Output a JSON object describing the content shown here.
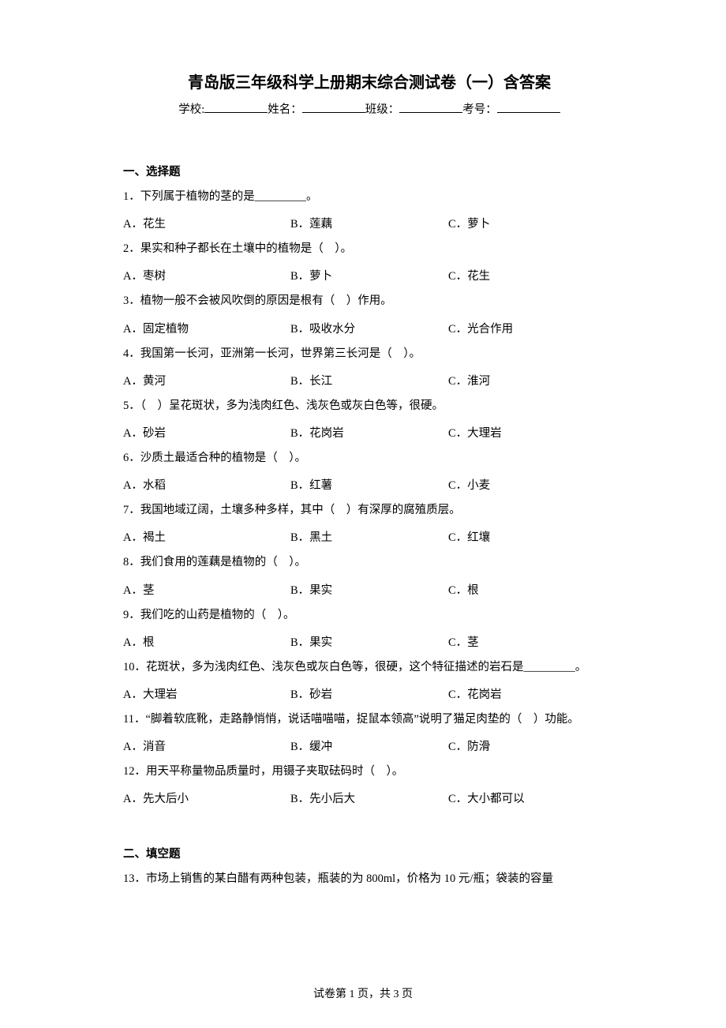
{
  "title": "青岛版三年级科学上册期末综合测试卷（一）含答案",
  "info": {
    "school_label": "学校:",
    "name_label": "姓名：",
    "class_label": "班级：",
    "examno_label": "考号："
  },
  "section1": "一、选择题",
  "questions": [
    {
      "stem": "1．下列属于植物的茎的是_________。",
      "opts": [
        "A．花生",
        "B．莲藕",
        "C．萝卜"
      ]
    },
    {
      "stem": "2．果实和种子都长在土壤中的植物是（　）。",
      "opts": [
        "A．枣树",
        "B．萝卜",
        "C．花生"
      ]
    },
    {
      "stem": "3．植物一般不会被风吹倒的原因是根有（　）作用。",
      "opts": [
        "A．固定植物",
        "B．吸收水分",
        "C．光合作用"
      ]
    },
    {
      "stem": "4．我国第一长河，亚洲第一长河，世界第三长河是（　）。",
      "opts": [
        "A．黄河",
        "B．长江",
        "C．淮河"
      ]
    },
    {
      "stem": "5．（　）呈花斑状，多为浅肉红色、浅灰色或灰白色等，很硬。",
      "opts": [
        "A．砂岩",
        "B．花岗岩",
        "C．大理岩"
      ]
    },
    {
      "stem": "6．沙质土最适合种的植物是（　）。",
      "opts": [
        "A．水稻",
        "B．红薯",
        "C．小麦"
      ]
    },
    {
      "stem": "7．我国地域辽阔，土壤多种多样，其中（　）有深厚的腐殖质层。",
      "opts": [
        "A．褐土",
        "B．黑土",
        "C．红壤"
      ]
    },
    {
      "stem": "8．我们食用的莲藕是植物的（　）。",
      "opts": [
        "A．茎",
        "B．果实",
        "C．根"
      ]
    },
    {
      "stem": "9．我们吃的山药是植物的（　）。",
      "opts": [
        "A．根",
        "B．果实",
        "C．茎"
      ]
    },
    {
      "stem": "10．花斑状，多为浅肉红色、浅灰色或灰白色等，很硬，这个特征描述的岩石是_________。",
      "opts": [
        "A．大理岩",
        "B．砂岩",
        "C．花岗岩"
      ]
    },
    {
      "stem": "11．“脚着软底靴，走路静悄悄，说话喵喵喵，捉鼠本领高”说明了猫足肉垫的（　）功能。",
      "opts": [
        "A．消音",
        "B．缓冲",
        "C．防滑"
      ]
    },
    {
      "stem": "12．用天平称量物品质量时，用镊子夹取砝码时（　）。",
      "opts": [
        "A．先大后小",
        "B．先小后大",
        "C．大小都可以"
      ]
    }
  ],
  "section2": "二、填空题",
  "q13": "13．市场上销售的某白醋有两种包装，瓶装的为 800ml，价格为 10 元/瓶；袋装的容量",
  "footer": "试卷第 1 页，共 3 页",
  "colors": {
    "text": "#000000",
    "background": "#ffffff"
  },
  "fonts": {
    "title_size": 20,
    "body_size": 14.5,
    "title_family": "SimHei",
    "body_family": "SimSun"
  }
}
